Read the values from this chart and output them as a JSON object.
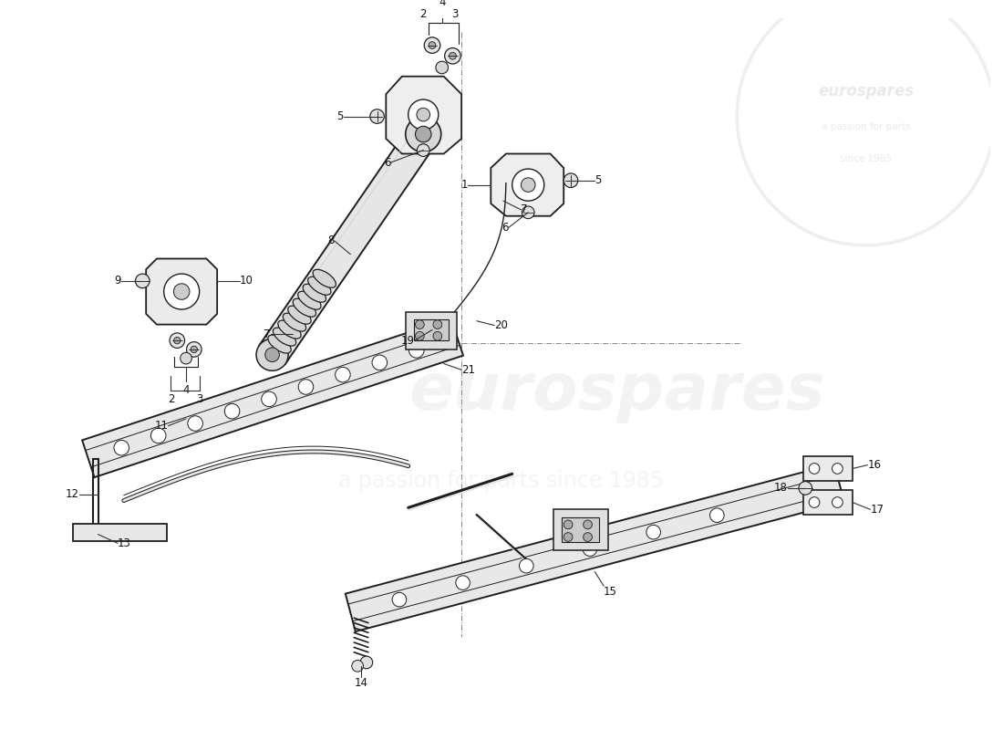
{
  "bg_color": "#ffffff",
  "lc": "#1e1e1e",
  "watermark1": "eurospares",
  "watermark2": "a passion for parts since 1985"
}
